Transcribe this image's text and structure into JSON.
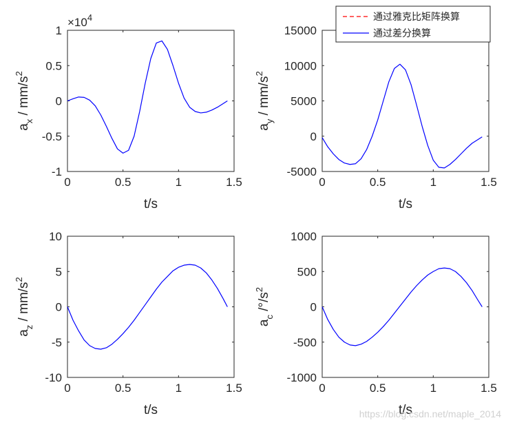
{
  "chart_data": [
    {
      "type": "line",
      "xlabel": "t/s",
      "ylabel": {
        "main": "a",
        "sub": "x",
        "rest": " / mm/s",
        "sup": "2"
      },
      "xlim": [
        0,
        1.5
      ],
      "ylim": [
        -10000,
        10000
      ],
      "xticks": [
        0,
        0.5,
        1,
        1.5
      ],
      "yticks": [
        -10000,
        -5000,
        0,
        5000,
        10000
      ],
      "xticklabels": [
        "0",
        "0.5",
        "1",
        "1.5"
      ],
      "yticklabels": [
        "-1",
        "-0.5",
        "0",
        "0.5",
        "1"
      ],
      "exponent": {
        "base": "×10",
        "power": "4"
      },
      "series": [
        {
          "name": "通过差分换算",
          "color": "#0000ff",
          "x": [
            0,
            0.05,
            0.1,
            0.15,
            0.2,
            0.25,
            0.3,
            0.35,
            0.4,
            0.45,
            0.5,
            0.55,
            0.6,
            0.65,
            0.7,
            0.75,
            0.8,
            0.85,
            0.9,
            0.95,
            1.0,
            1.05,
            1.1,
            1.15,
            1.2,
            1.25,
            1.3,
            1.35,
            1.4,
            1.44
          ],
          "y": [
            0,
            300,
            550,
            500,
            100,
            -700,
            -2000,
            -3600,
            -5300,
            -6800,
            -7400,
            -7000,
            -5000,
            -1500,
            2500,
            6000,
            8200,
            8500,
            7300,
            5000,
            2500,
            400,
            -900,
            -1500,
            -1700,
            -1600,
            -1300,
            -900,
            -400,
            0
          ]
        }
      ]
    },
    {
      "type": "line",
      "xlabel": "t/s",
      "ylabel": {
        "main": "a",
        "sub": "y",
        "rest": " / mm/s",
        "sup": "2"
      },
      "xlim": [
        0,
        1.5
      ],
      "ylim": [
        -5000,
        15000
      ],
      "xticks": [
        0,
        0.5,
        1,
        1.5
      ],
      "yticks": [
        -5000,
        0,
        5000,
        10000,
        15000
      ],
      "xticklabels": [
        "0",
        "0.5",
        "1",
        "1.5"
      ],
      "yticklabels": [
        "-5000",
        "0",
        "5000",
        "10000",
        "15000"
      ],
      "legend": {
        "position": "top-right",
        "entries": [
          {
            "label": "通过雅克比矩阵换算",
            "color": "#ff0000",
            "style": "dashed"
          },
          {
            "label": "通过差分换算",
            "color": "#0000ff",
            "style": "solid"
          }
        ]
      },
      "series": [
        {
          "name": "通过差分换算",
          "color": "#0000ff",
          "x": [
            0,
            0.05,
            0.1,
            0.15,
            0.2,
            0.25,
            0.3,
            0.35,
            0.4,
            0.45,
            0.5,
            0.55,
            0.6,
            0.65,
            0.7,
            0.75,
            0.8,
            0.85,
            0.9,
            0.95,
            1.0,
            1.05,
            1.1,
            1.15,
            1.2,
            1.25,
            1.3,
            1.35,
            1.4,
            1.44
          ],
          "y": [
            -200,
            -1500,
            -2500,
            -3300,
            -3800,
            -4000,
            -3900,
            -3200,
            -1900,
            0,
            2300,
            5000,
            7700,
            9600,
            10200,
            9400,
            7300,
            4400,
            1400,
            -1300,
            -3400,
            -4400,
            -4500,
            -4000,
            -3300,
            -2500,
            -1700,
            -1000,
            -500,
            -100
          ]
        }
      ]
    },
    {
      "type": "line",
      "xlabel": "t/s",
      "ylabel": {
        "main": "a",
        "sub": "z",
        "rest": " / mm/s",
        "sup": "2"
      },
      "xlim": [
        0,
        1.5
      ],
      "ylim": [
        -10,
        10
      ],
      "xticks": [
        0,
        0.5,
        1,
        1.5
      ],
      "yticks": [
        -10,
        -5,
        0,
        5,
        10
      ],
      "xticklabels": [
        "0",
        "0.5",
        "1",
        "1.5"
      ],
      "yticklabels": [
        "-10",
        "-5",
        "0",
        "5",
        "10"
      ],
      "series": [
        {
          "name": "通过差分换算",
          "color": "#0000ff",
          "x": [
            0,
            0.05,
            0.1,
            0.15,
            0.2,
            0.25,
            0.3,
            0.35,
            0.4,
            0.45,
            0.5,
            0.55,
            0.6,
            0.65,
            0.7,
            0.75,
            0.8,
            0.85,
            0.9,
            0.95,
            1.0,
            1.05,
            1.1,
            1.15,
            1.2,
            1.25,
            1.3,
            1.35,
            1.4,
            1.44
          ],
          "y": [
            0,
            -1.9,
            -3.4,
            -4.7,
            -5.5,
            -5.9,
            -6.0,
            -5.8,
            -5.3,
            -4.6,
            -3.8,
            -2.9,
            -1.9,
            -0.8,
            0.3,
            1.4,
            2.5,
            3.5,
            4.3,
            5.1,
            5.6,
            5.9,
            6.0,
            5.9,
            5.5,
            4.8,
            3.8,
            2.6,
            1.2,
            0
          ]
        }
      ]
    },
    {
      "type": "line",
      "xlabel": "t/s",
      "ylabel": {
        "main": "a",
        "sub": "c",
        "rest": " /°/s",
        "sup": "2"
      },
      "xlim": [
        0,
        1.5
      ],
      "ylim": [
        -1000,
        1000
      ],
      "xticks": [
        0,
        0.5,
        1,
        1.5
      ],
      "yticks": [
        -1000,
        -500,
        0,
        500,
        1000
      ],
      "xticklabels": [
        "0",
        "0.5",
        "1",
        "1.5"
      ],
      "yticklabels": [
        "-1000",
        "-500",
        "0",
        "500",
        "1000"
      ],
      "series": [
        {
          "name": "通过差分换算",
          "color": "#0000ff",
          "x": [
            0,
            0.05,
            0.1,
            0.15,
            0.2,
            0.25,
            0.3,
            0.35,
            0.4,
            0.45,
            0.5,
            0.55,
            0.6,
            0.65,
            0.7,
            0.75,
            0.8,
            0.85,
            0.9,
            0.95,
            1.0,
            1.05,
            1.1,
            1.15,
            1.2,
            1.25,
            1.3,
            1.35,
            1.4,
            1.44
          ],
          "y": [
            0,
            -180,
            -320,
            -430,
            -500,
            -540,
            -550,
            -530,
            -490,
            -430,
            -360,
            -280,
            -190,
            -90,
            10,
            110,
            210,
            300,
            380,
            450,
            500,
            540,
            550,
            540,
            500,
            430,
            340,
            230,
            100,
            0
          ]
        }
      ]
    }
  ],
  "watermark": "https://blog.csdn.net/maple_2014"
}
